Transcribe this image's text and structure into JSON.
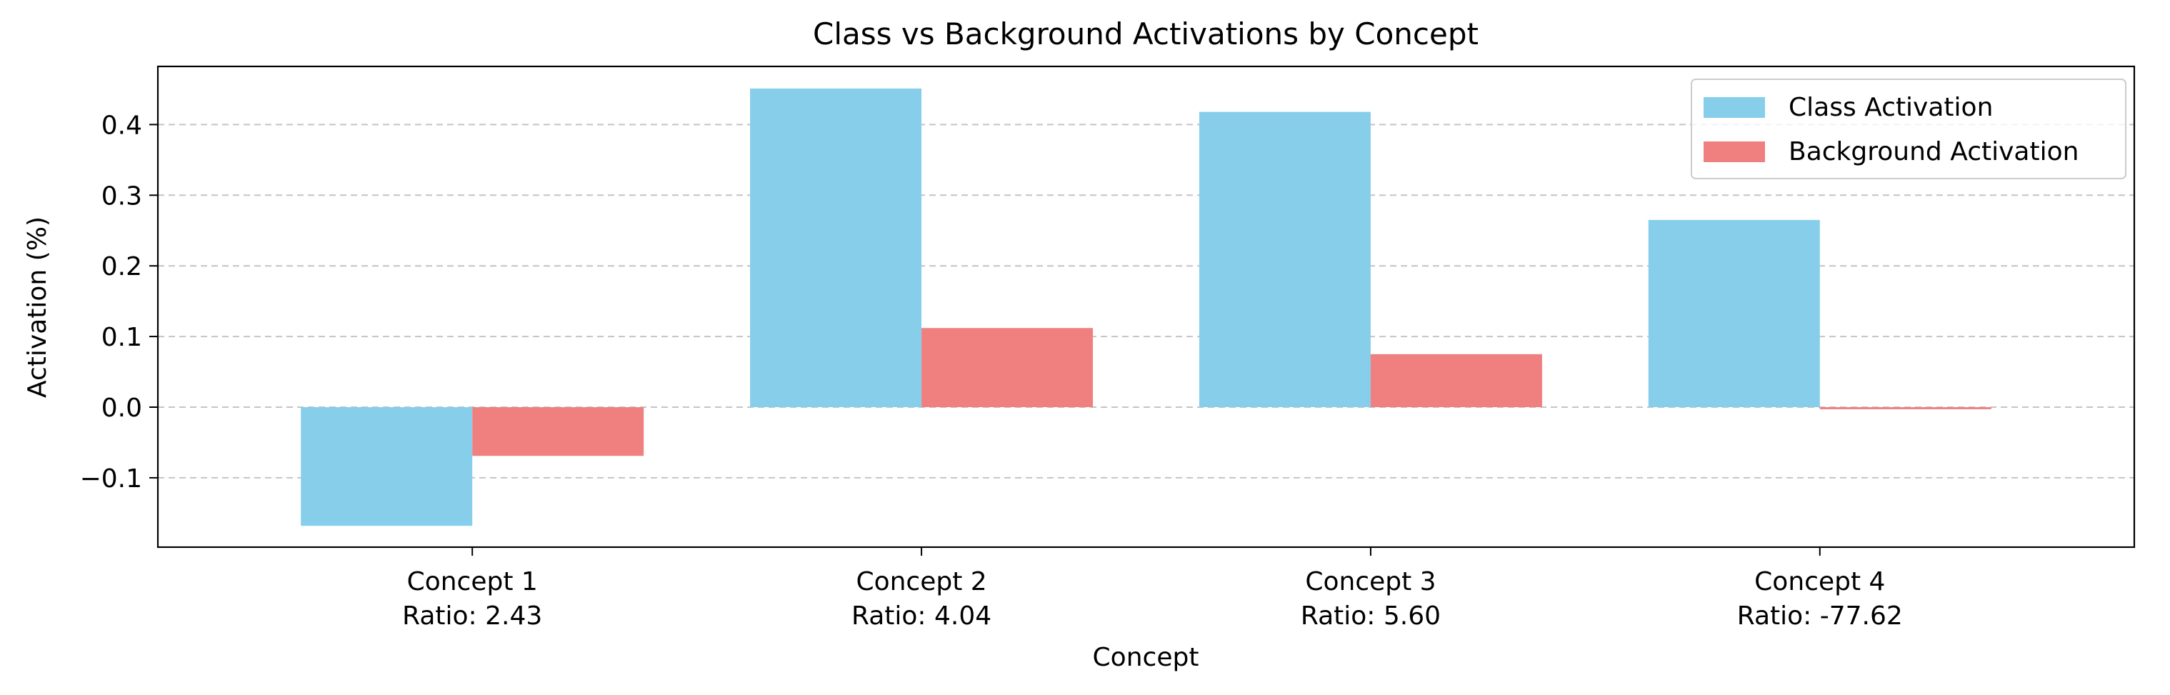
{
  "chart_data": {
    "type": "bar",
    "title": "Class vs Background Activations by Concept",
    "xlabel": "Concept",
    "ylabel": "Activation (%)",
    "categories": [
      {
        "name": "Concept 1",
        "ratio": "Ratio: 2.43"
      },
      {
        "name": "Concept 2",
        "ratio": "Ratio: 4.04"
      },
      {
        "name": "Concept 3",
        "ratio": "Ratio: 5.60"
      },
      {
        "name": "Concept 4",
        "ratio": "Ratio: -77.62"
      }
    ],
    "series": [
      {
        "name": "Class Activation",
        "color": "#87CEEB",
        "values": [
          -0.168,
          0.451,
          0.418,
          0.265
        ]
      },
      {
        "name": "Background Activation",
        "color": "#F08080",
        "values": [
          -0.069,
          0.112,
          0.075,
          -0.003
        ]
      }
    ],
    "ylim": [
      -0.2,
      0.48
    ],
    "yticks": [
      -0.1,
      0.0,
      0.1,
      0.2,
      0.3,
      0.4
    ],
    "ytick_labels": [
      "−0.1",
      "0.0",
      "0.1",
      "0.2",
      "0.3",
      "0.4"
    ],
    "grid": "y-dashed",
    "legend_position": "top-right"
  }
}
